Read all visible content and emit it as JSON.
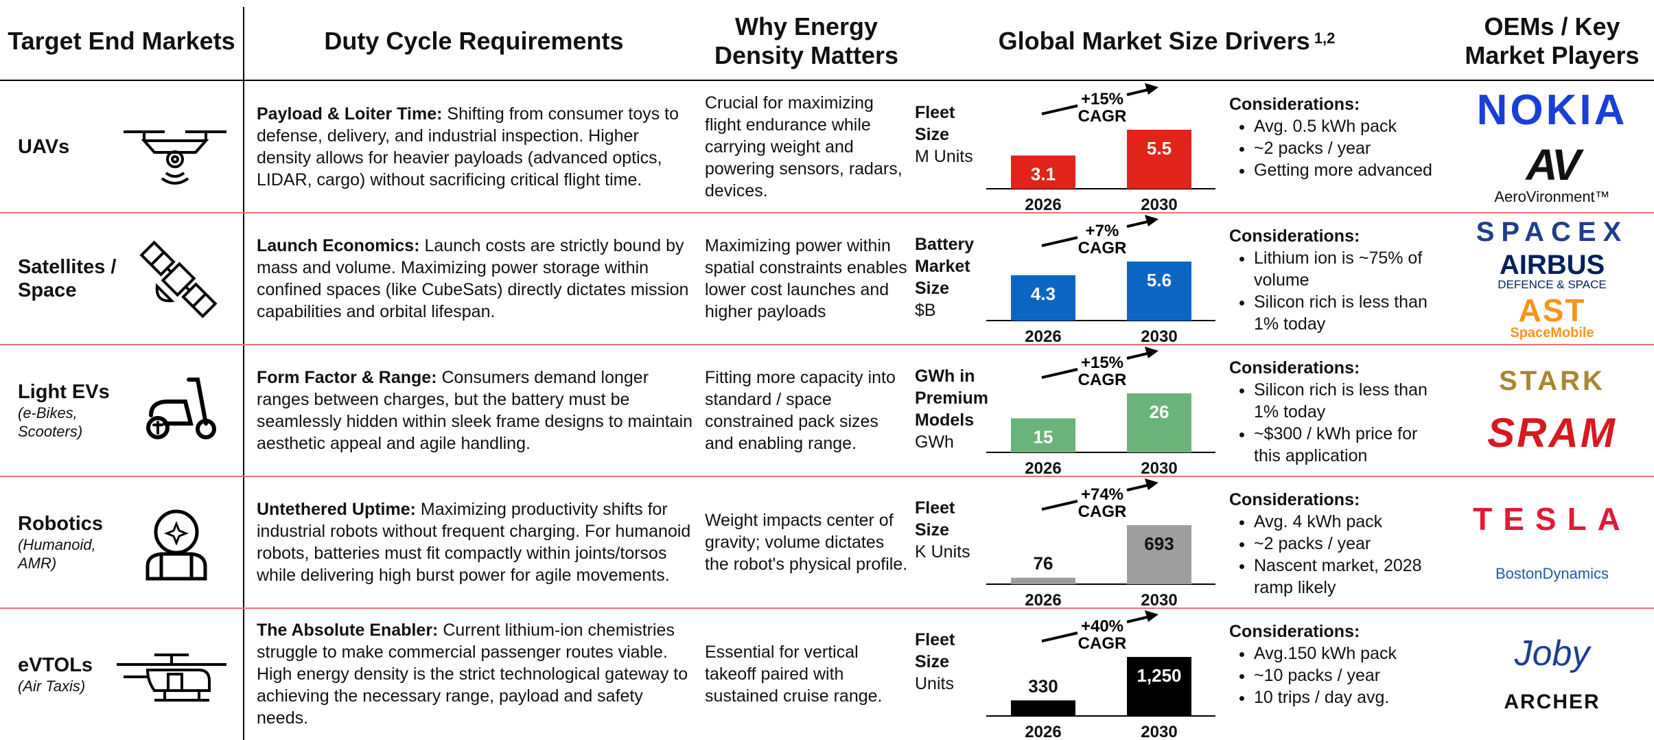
{
  "header": {
    "markets": "Target End Markets",
    "duty": "Duty Cycle Requirements",
    "why": "Why Energy Density Matters",
    "drivers": "Global Market Size Drivers",
    "drivers_note": "1,2",
    "players": "OEMs / Key Market Players"
  },
  "rows": [
    {
      "market": "UAVs",
      "duty_title": "Payload & Loiter Time:",
      "duty_text": "Shifting from consumer toys to defense, delivery, and industrial inspection. Higher density allows for heavier payloads (advanced optics, LIDAR, cargo) without sacrificing critical flight time.",
      "why": "Crucial for maximizing flight endurance while carrying weight and powering sensors, radars, devices.",
      "metric": [
        "Fleet",
        "Size"
      ],
      "metric_unit": "M Units",
      "cagr": "+15%",
      "cagr_label": "CAGR",
      "years": [
        "2026",
        "2030"
      ],
      "values": [
        3.1,
        5.5
      ],
      "bar_color": "#e2231a",
      "label_color": "#ffffff",
      "considerations_title": "Considerations:",
      "considerations": [
        "Avg. 0.5 kWh pack",
        "~2 packs / year",
        "Getting more advanced"
      ],
      "players": [
        "NOKIA",
        "AV",
        "AeroVironment™"
      ]
    },
    {
      "market": "Satellites / Space",
      "duty_title": "Launch Economics:",
      "duty_text": "Launch costs are strictly bound by mass and volume. Maximizing power storage within confined spaces (like CubeSats) directly dictates mission capabilities and orbital lifespan.",
      "why": "Maximizing power within spatial constraints enables lower cost launches and higher payloads",
      "metric": [
        "Battery",
        "Market",
        "Size"
      ],
      "metric_unit": "$B",
      "cagr": "+7%",
      "cagr_label": "CAGR",
      "years": [
        "2026",
        "2030"
      ],
      "values": [
        4.3,
        5.6
      ],
      "bar_color": "#0b66c3",
      "label_color": "#ffffff",
      "considerations_title": "Considerations:",
      "considerations": [
        "Lithium ion is ~75% of volume",
        "Silicon rich is less than 1% today"
      ],
      "players": [
        "SPACEX",
        "AIRBUS",
        "DEFENCE & SPACE",
        "AST",
        "SpaceMobile"
      ]
    },
    {
      "market": "Light EVs",
      "market_sub": "(e-Bikes, Scooters)",
      "duty_title": "Form Factor & Range:",
      "duty_text": "Consumers demand longer ranges between charges, but the battery must be seamlessly hidden within sleek frame designs to maintain aesthetic appeal and agile handling.",
      "why": "Fitting more capacity into standard / space constrained pack sizes and enabling range.",
      "metric": [
        "GWh in",
        "Premium",
        "Models"
      ],
      "metric_unit": "GWh",
      "cagr": "+15%",
      "cagr_label": "CAGR",
      "years": [
        "2026",
        "2030"
      ],
      "values": [
        15,
        26
      ],
      "bar_color": "#6ab47a",
      "label_color": "#ffffff",
      "considerations_title": "Considerations:",
      "considerations": [
        "Silicon rich is less than 1% today",
        "~$300 / kWh price for this application"
      ],
      "players": [
        "STARK",
        "SRAM"
      ]
    },
    {
      "market": "Robotics",
      "market_sub": "(Humanoid, AMR)",
      "duty_title": "Untethered Uptime:",
      "duty_text": "Maximizing productivity shifts for industrial robots without frequent charging. For humanoid robots, batteries must fit compactly within joints/torsos while delivering high burst power for agile movements.",
      "why": "Weight impacts center of gravity; volume dictates the robot's physical profile.",
      "metric": [
        "Fleet",
        "Size"
      ],
      "metric_unit": "K Units",
      "cagr": "+74%",
      "cagr_label": "CAGR",
      "years": [
        "2026",
        "2030"
      ],
      "values": [
        76,
        693
      ],
      "bar_color": "#9e9e9e",
      "label_color": "#111111",
      "considerations_title": "Considerations:",
      "considerations": [
        "Avg. 4 kWh pack",
        "~2 packs / year",
        "Nascent market, 2028 ramp likely"
      ],
      "players": [
        "TESLA",
        "BostonDynamics"
      ]
    },
    {
      "market": "eVTOLs",
      "market_sub": "(Air Taxis)",
      "duty_title": "The Absolute Enabler:",
      "duty_text": "Current lithium-ion chemistries struggle to make commercial passenger routes viable. High energy density is the strict technological gateway to achieving the necessary range, payload and safety needs.",
      "why": "Essential for vertical takeoff paired with sustained cruise range.",
      "metric": [
        "Fleet",
        "Size"
      ],
      "metric_unit": "Units",
      "cagr": "+40%",
      "cagr_label": "CAGR",
      "years": [
        "2026",
        "2030"
      ],
      "values": [
        330,
        1250
      ],
      "value_labels": [
        "330",
        "1,250"
      ],
      "bar_color": "#000000",
      "label_color": "#ffffff",
      "considerations_title": "Considerations:",
      "considerations": [
        "Avg.150 kWh pack",
        "~10 packs / year",
        "10 trips / day avg."
      ],
      "players": [
        "Joby",
        "ARCHER"
      ]
    }
  ]
}
